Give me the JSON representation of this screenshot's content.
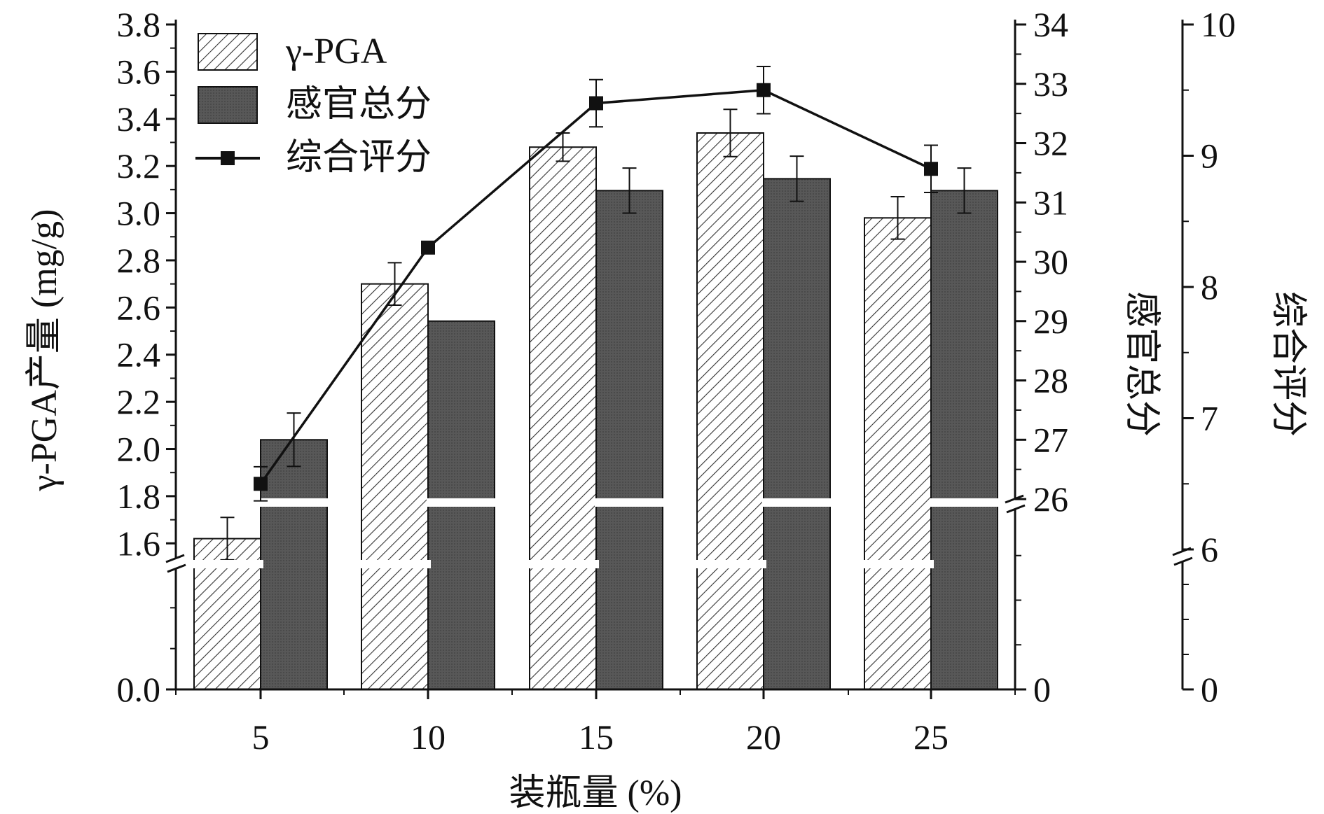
{
  "chart_data": {
    "type": "bar",
    "xlabel": "装瓶量 (%)",
    "categories": [
      "5",
      "10",
      "15",
      "20",
      "25"
    ],
    "axes": {
      "left": {
        "label": "γ-PGA产量 (mg/g)",
        "ticks": [
          "0.0",
          "1.6",
          "1.8",
          "2.0",
          "2.2",
          "2.4",
          "2.6",
          "2.8",
          "3.0",
          "3.2",
          "3.4",
          "3.6",
          "3.8"
        ],
        "range": [
          0,
          3.8
        ],
        "axis_break": [
          0,
          1.5
        ]
      },
      "right1": {
        "label": "感官总分",
        "ticks": [
          "0",
          "26",
          "27",
          "28",
          "29",
          "30",
          "31",
          "32",
          "33",
          "34"
        ],
        "range": [
          0,
          34
        ],
        "axis_break": [
          0,
          25.8
        ]
      },
      "right2": {
        "label": "综合评分",
        "ticks": [
          "0",
          "6",
          "7",
          "8",
          "9",
          "10"
        ],
        "range": [
          0,
          10
        ],
        "axis_break": [
          0,
          6
        ]
      }
    },
    "series": [
      {
        "name": "γ-PGA",
        "kind": "bar",
        "pattern": "hatched",
        "axis": "left",
        "values": [
          1.62,
          2.7,
          3.28,
          3.34,
          2.98
        ],
        "errors": [
          0.09,
          0.09,
          0.06,
          0.1,
          0.09
        ]
      },
      {
        "name": "感官总分",
        "kind": "bar",
        "pattern": "solid-dark",
        "axis": "right1",
        "values": [
          27.0,
          29.0,
          31.2,
          31.4,
          31.2
        ],
        "errors": [
          0.45,
          null,
          0.38,
          0.38,
          0.38
        ]
      },
      {
        "name": "综合评分",
        "kind": "line",
        "marker": "square",
        "axis": "right2",
        "values": [
          6.5,
          8.3,
          9.4,
          9.5,
          8.9
        ],
        "errors": [
          0.13,
          null,
          0.18,
          0.18,
          0.18
        ]
      }
    ],
    "legend": {
      "position": "top-left",
      "entries": [
        "γ-PGA",
        "感官总分",
        "综合评分"
      ]
    },
    "colors": {
      "dark_bar": "#555555",
      "hatch": "#333333",
      "line": "#111111",
      "axis": "#111111"
    }
  }
}
